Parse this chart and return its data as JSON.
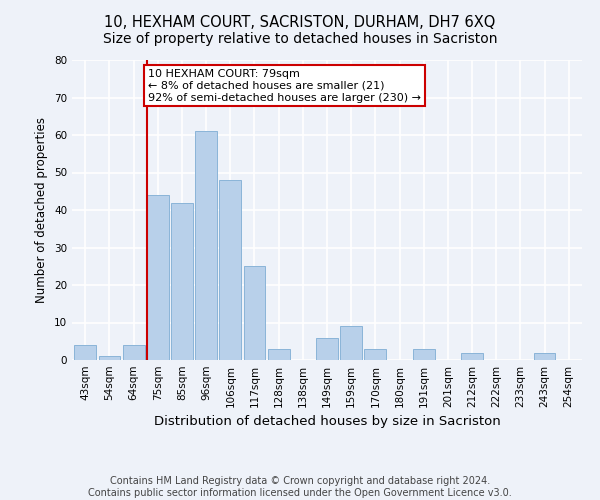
{
  "title": "10, HEXHAM COURT, SACRISTON, DURHAM, DH7 6XQ",
  "subtitle": "Size of property relative to detached houses in Sacriston",
  "xlabel": "Distribution of detached houses by size in Sacriston",
  "ylabel": "Number of detached properties",
  "bins": [
    "43sqm",
    "54sqm",
    "64sqm",
    "75sqm",
    "85sqm",
    "96sqm",
    "106sqm",
    "117sqm",
    "128sqm",
    "138sqm",
    "149sqm",
    "159sqm",
    "170sqm",
    "180sqm",
    "191sqm",
    "201sqm",
    "212sqm",
    "222sqm",
    "233sqm",
    "243sqm",
    "254sqm"
  ],
  "values": [
    4,
    1,
    4,
    44,
    42,
    61,
    48,
    25,
    3,
    0,
    6,
    9,
    3,
    0,
    3,
    0,
    2,
    0,
    0,
    2,
    0
  ],
  "bar_color": "#b8d0ea",
  "bar_edge_color": "#8ab4d8",
  "redline_bin_index": 3,
  "annotation_text": "10 HEXHAM COURT: 79sqm\n← 8% of detached houses are smaller (21)\n92% of semi-detached houses are larger (230) →",
  "annotation_box_color": "#ffffff",
  "annotation_box_edge_color": "#cc0000",
  "redline_color": "#cc0000",
  "ylim": [
    0,
    80
  ],
  "yticks": [
    0,
    10,
    20,
    30,
    40,
    50,
    60,
    70,
    80
  ],
  "footer1": "Contains HM Land Registry data © Crown copyright and database right 2024.",
  "footer2": "Contains public sector information licensed under the Open Government Licence v3.0.",
  "bg_color": "#eef2f9",
  "grid_color": "#ffffff",
  "title_fontsize": 10.5,
  "xlabel_fontsize": 9.5,
  "ylabel_fontsize": 8.5,
  "tick_fontsize": 7.5,
  "annotation_fontsize": 8,
  "footer_fontsize": 7
}
